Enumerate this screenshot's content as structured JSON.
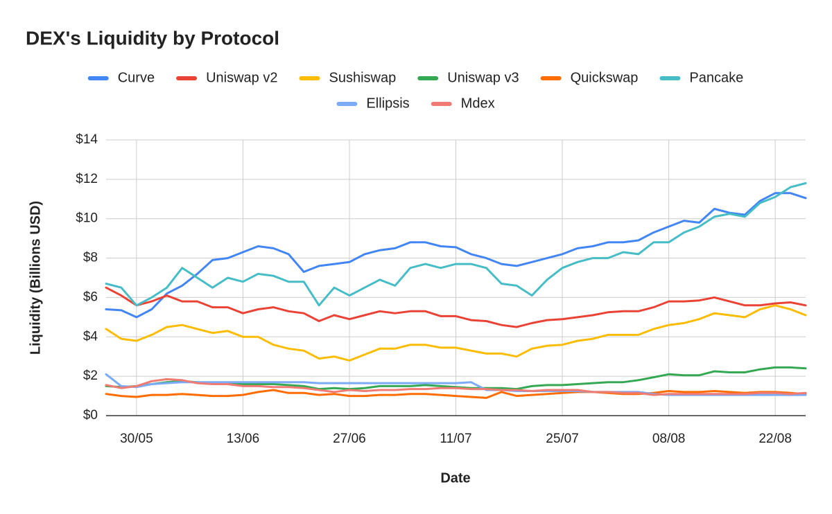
{
  "chart_data": {
    "type": "line",
    "title": "DEX's Liquidity by Protocol",
    "x_label": "Date",
    "y_label": "Liquidity (Billions USD)",
    "categories": [
      null,
      null,
      "30/05",
      null,
      null,
      null,
      null,
      null,
      null,
      "13/06",
      null,
      null,
      null,
      null,
      null,
      null,
      "27/06",
      null,
      null,
      null,
      null,
      null,
      null,
      "11/07",
      null,
      null,
      null,
      null,
      null,
      null,
      "25/07",
      null,
      null,
      null,
      null,
      null,
      null,
      "08/08",
      null,
      null,
      null,
      null,
      null,
      null,
      "22/08",
      null,
      null
    ],
    "ylim": [
      0,
      14
    ],
    "yticks": [
      {
        "value": 0,
        "label": "$0"
      },
      {
        "value": 2,
        "label": "$2"
      },
      {
        "value": 4,
        "label": "$4"
      },
      {
        "value": 6,
        "label": "$6"
      },
      {
        "value": 8,
        "label": "$8"
      },
      {
        "value": 10,
        "label": "$10"
      },
      {
        "value": 12,
        "label": "$12"
      },
      {
        "value": 14,
        "label": "$14"
      }
    ],
    "grid": true,
    "legend": "top",
    "series": [
      {
        "name": "Curve",
        "color": "#4285f4",
        "values": [
          5.4,
          5.35,
          5.0,
          5.4,
          6.2,
          6.6,
          7.2,
          7.9,
          8.0,
          8.3,
          8.6,
          8.5,
          8.2,
          7.3,
          7.6,
          7.7,
          7.8,
          8.2,
          8.4,
          8.5,
          8.8,
          8.8,
          8.6,
          8.55,
          8.2,
          8.0,
          7.7,
          7.6,
          7.8,
          8.0,
          8.2,
          8.5,
          8.6,
          8.8,
          8.8,
          8.9,
          9.3,
          9.6,
          9.9,
          9.8,
          10.5,
          10.3,
          10.2,
          10.9,
          11.3,
          11.3,
          11.05
        ]
      },
      {
        "name": "Uniswap v2",
        "color": "#ea4335",
        "values": [
          6.5,
          6.1,
          5.6,
          5.8,
          6.1,
          5.8,
          5.8,
          5.5,
          5.5,
          5.2,
          5.4,
          5.5,
          5.3,
          5.2,
          4.8,
          5.1,
          4.9,
          5.1,
          5.3,
          5.2,
          5.3,
          5.3,
          5.05,
          5.05,
          4.85,
          4.8,
          4.6,
          4.5,
          4.7,
          4.85,
          4.9,
          5.0,
          5.1,
          5.25,
          5.3,
          5.3,
          5.5,
          5.8,
          5.8,
          5.85,
          6.0,
          5.8,
          5.6,
          5.6,
          5.7,
          5.75,
          5.6
        ]
      },
      {
        "name": "Sushiswap",
        "color": "#fbbc04",
        "values": [
          4.4,
          3.9,
          3.8,
          4.1,
          4.5,
          4.6,
          4.4,
          4.2,
          4.3,
          4.0,
          4.0,
          3.6,
          3.4,
          3.3,
          2.9,
          3.0,
          2.8,
          3.1,
          3.4,
          3.4,
          3.6,
          3.6,
          3.45,
          3.45,
          3.3,
          3.15,
          3.15,
          3.0,
          3.4,
          3.55,
          3.6,
          3.8,
          3.9,
          4.1,
          4.1,
          4.1,
          4.4,
          4.6,
          4.7,
          4.9,
          5.2,
          5.1,
          5.0,
          5.4,
          5.6,
          5.4,
          5.1
        ]
      },
      {
        "name": "Uniswap v3",
        "color": "#34a853",
        "values": [
          1.5,
          1.45,
          1.5,
          1.6,
          1.7,
          1.75,
          1.7,
          1.65,
          1.65,
          1.6,
          1.6,
          1.6,
          1.55,
          1.5,
          1.35,
          1.4,
          1.35,
          1.4,
          1.5,
          1.5,
          1.5,
          1.55,
          1.5,
          1.45,
          1.4,
          1.4,
          1.4,
          1.35,
          1.5,
          1.55,
          1.55,
          1.6,
          1.65,
          1.7,
          1.7,
          1.8,
          1.95,
          2.1,
          2.05,
          2.05,
          2.25,
          2.2,
          2.2,
          2.35,
          2.45,
          2.45,
          2.4
        ]
      },
      {
        "name": "Quickswap",
        "color": "#ff6d01",
        "values": [
          1.1,
          1.0,
          0.95,
          1.05,
          1.05,
          1.1,
          1.05,
          1.0,
          1.0,
          1.05,
          1.2,
          1.3,
          1.15,
          1.15,
          1.05,
          1.1,
          1.0,
          1.0,
          1.05,
          1.05,
          1.1,
          1.1,
          1.05,
          1.0,
          0.95,
          0.9,
          1.2,
          1.0,
          1.05,
          1.1,
          1.15,
          1.2,
          1.2,
          1.15,
          1.1,
          1.1,
          1.15,
          1.25,
          1.2,
          1.2,
          1.25,
          1.2,
          1.15,
          1.2,
          1.2,
          1.15,
          1.1
        ]
      },
      {
        "name": "Pancake",
        "color": "#46bdc6",
        "values": [
          6.7,
          6.5,
          5.6,
          6.0,
          6.5,
          7.5,
          7.0,
          6.5,
          7.0,
          6.8,
          7.2,
          7.1,
          6.8,
          6.8,
          5.6,
          6.5,
          6.1,
          6.5,
          6.9,
          6.6,
          7.5,
          7.7,
          7.5,
          7.7,
          7.7,
          7.5,
          6.7,
          6.6,
          6.1,
          6.9,
          7.5,
          7.8,
          8.0,
          8.0,
          8.3,
          8.2,
          8.8,
          8.8,
          9.3,
          9.6,
          10.1,
          10.25,
          10.1,
          10.8,
          11.1,
          11.6,
          11.8
        ]
      },
      {
        "name": "Ellipsis",
        "color": "#7baaf7",
        "values": [
          2.1,
          1.5,
          1.45,
          1.6,
          1.65,
          1.7,
          1.7,
          1.7,
          1.7,
          1.7,
          1.7,
          1.7,
          1.7,
          1.7,
          1.65,
          1.65,
          1.65,
          1.65,
          1.65,
          1.65,
          1.65,
          1.65,
          1.65,
          1.65,
          1.7,
          1.3,
          1.3,
          1.25,
          1.25,
          1.25,
          1.25,
          1.25,
          1.2,
          1.2,
          1.2,
          1.2,
          1.1,
          1.05,
          1.05,
          1.05,
          1.05,
          1.05,
          1.05,
          1.05,
          1.05,
          1.05,
          1.05
        ]
      },
      {
        "name": "Mdex",
        "color": "#f07b72",
        "values": [
          1.55,
          1.4,
          1.5,
          1.75,
          1.85,
          1.8,
          1.65,
          1.6,
          1.6,
          1.5,
          1.5,
          1.45,
          1.45,
          1.4,
          1.3,
          1.2,
          1.3,
          1.25,
          1.3,
          1.3,
          1.35,
          1.35,
          1.4,
          1.4,
          1.35,
          1.35,
          1.3,
          1.3,
          1.25,
          1.3,
          1.3,
          1.3,
          1.2,
          1.2,
          1.15,
          1.15,
          1.05,
          1.1,
          1.1,
          1.1,
          1.1,
          1.1,
          1.1,
          1.15,
          1.15,
          1.1,
          1.15
        ]
      }
    ]
  }
}
